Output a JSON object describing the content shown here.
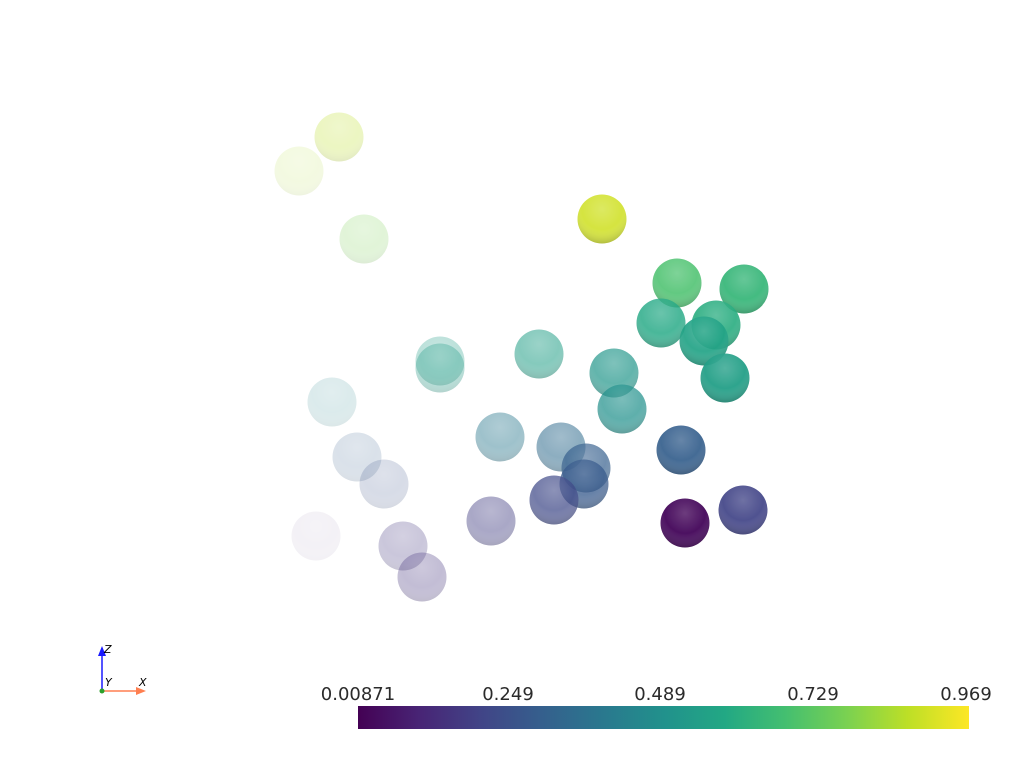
{
  "scene": {
    "background": "#ffffff",
    "sphere_colormap": "viridis",
    "spheres": [
      {
        "value": 0.9,
        "opacity": 0.28
      },
      {
        "value": 0.88,
        "opacity": 0.14
      },
      {
        "value": 0.8,
        "opacity": 0.22
      },
      {
        "value": 0.93,
        "opacity": 0.88
      },
      {
        "value": 0.71,
        "opacity": 0.86
      },
      {
        "value": 0.66,
        "opacity": 0.93
      },
      {
        "value": 0.6,
        "opacity": 0.82
      },
      {
        "value": 0.62,
        "opacity": 0.9
      },
      {
        "value": 0.58,
        "opacity": 0.92
      },
      {
        "value": 0.56,
        "opacity": 0.94
      },
      {
        "value": 0.55,
        "opacity": 0.3
      },
      {
        "value": 0.55,
        "opacity": 0.34
      },
      {
        "value": 0.56,
        "opacity": 0.55
      },
      {
        "value": 0.52,
        "opacity": 0.7
      },
      {
        "value": 0.5,
        "opacity": 0.72
      },
      {
        "value": 0.45,
        "opacity": 0.16
      },
      {
        "value": 0.4,
        "opacity": 0.45
      },
      {
        "value": 0.35,
        "opacity": 0.55
      },
      {
        "value": 0.3,
        "opacity": 0.7
      },
      {
        "value": 0.28,
        "opacity": 0.76
      },
      {
        "value": 0.3,
        "opacity": 0.92
      },
      {
        "value": 0.3,
        "opacity": 0.18
      },
      {
        "value": 0.25,
        "opacity": 0.2
      },
      {
        "value": 0.22,
        "opacity": 0.72
      },
      {
        "value": 0.2,
        "opacity": 0.92
      },
      {
        "value": 0.18,
        "opacity": 0.45
      },
      {
        "value": 0.16,
        "opacity": 0.28
      },
      {
        "value": 0.15,
        "opacity": 0.32
      },
      {
        "value": 0.1,
        "opacity": 0.06
      },
      {
        "value": 0.02,
        "opacity": 0.96
      }
    ]
  },
  "colorbar": {
    "colormap": "viridis",
    "min": 0.00871,
    "max": 0.969,
    "ticks": [
      "0.00871",
      "0.249",
      "0.489",
      "0.729",
      "0.969"
    ]
  },
  "orientation_axes": {
    "z_label": "Z",
    "y_label": "Y",
    "x_label": "X",
    "z_color": "#1a1aff",
    "x_color": "#ff7f50",
    "y_color": "#2ca02c"
  }
}
